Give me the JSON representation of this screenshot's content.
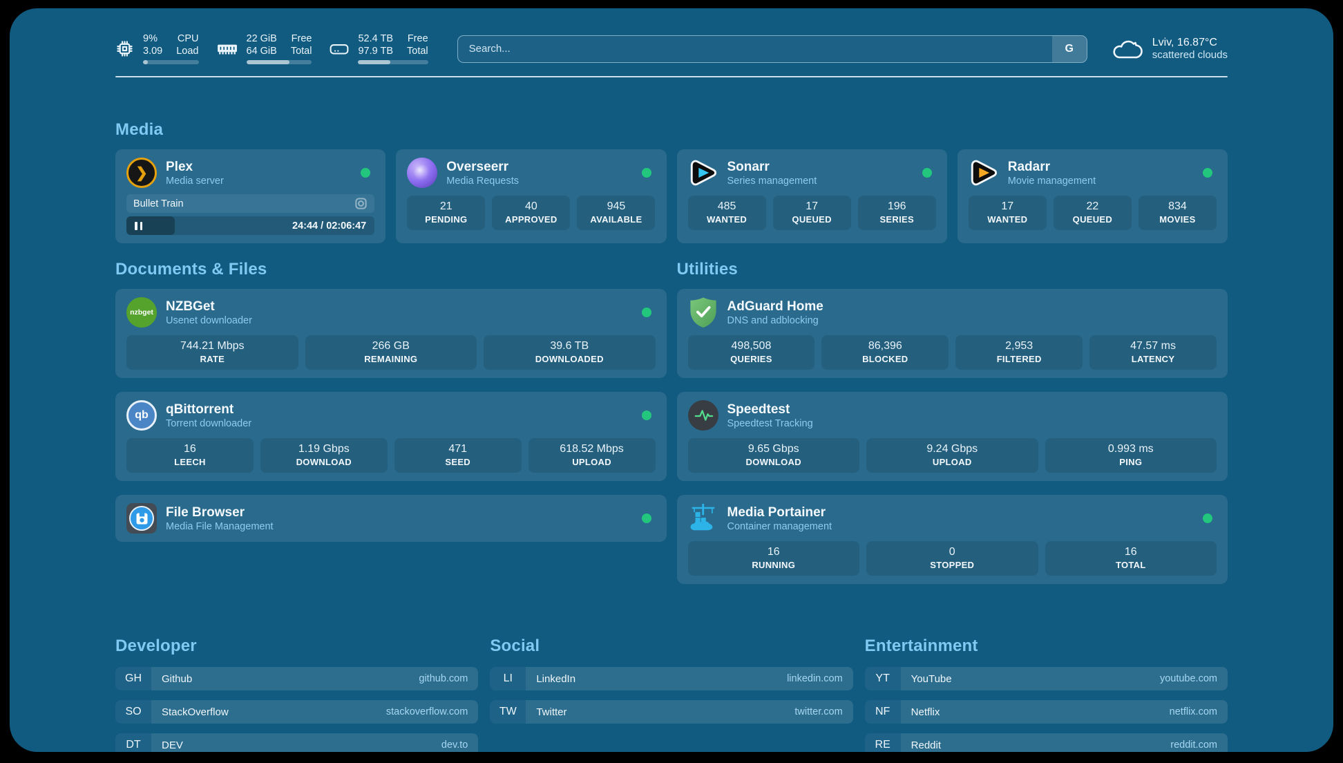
{
  "topbar": {
    "cpu": {
      "value_top": "9%",
      "value_bottom": "3.09",
      "label_top": "CPU",
      "label_bottom": "Load",
      "bar_pct": 9
    },
    "memory": {
      "value_top": "22 GiB",
      "value_bottom": "64 GiB",
      "label_top": "Free",
      "label_bottom": "Total",
      "bar_pct": 66
    },
    "disk": {
      "value_top": "52.4 TB",
      "value_bottom": "97.9 TB",
      "label_top": "Free",
      "label_bottom": "Total",
      "bar_pct": 46
    },
    "search": {
      "placeholder": "Search...",
      "button_label": "G"
    },
    "weather": {
      "location": "Lviv, 16.87°C",
      "condition": "scattered clouds"
    }
  },
  "sections": {
    "media": "Media",
    "documents": "Documents & Files",
    "utilities": "Utilities"
  },
  "media_cards": {
    "plex": {
      "title": "Plex",
      "subtitle": "Media server",
      "now_playing": "Bullet Train",
      "progress_pct": 19.5,
      "time": "24:44 / 02:06:47"
    },
    "overseerr": {
      "title": "Overseerr",
      "subtitle": "Media Requests",
      "stats": [
        {
          "value": "21",
          "label": "PENDING"
        },
        {
          "value": "40",
          "label": "APPROVED"
        },
        {
          "value": "945",
          "label": "AVAILABLE"
        }
      ]
    },
    "sonarr": {
      "title": "Sonarr",
      "subtitle": "Series management",
      "stats": [
        {
          "value": "485",
          "label": "WANTED"
        },
        {
          "value": "17",
          "label": "QUEUED"
        },
        {
          "value": "196",
          "label": "SERIES"
        }
      ]
    },
    "radarr": {
      "title": "Radarr",
      "subtitle": "Movie management",
      "stats": [
        {
          "value": "17",
          "label": "WANTED"
        },
        {
          "value": "22",
          "label": "QUEUED"
        },
        {
          "value": "834",
          "label": "MOVIES"
        }
      ]
    }
  },
  "documents_cards": {
    "nzbget": {
      "title": "NZBGet",
      "subtitle": "Usenet downloader",
      "stats": [
        {
          "value": "744.21 Mbps",
          "label": "RATE"
        },
        {
          "value": "266 GB",
          "label": "REMAINING"
        },
        {
          "value": "39.6 TB",
          "label": "DOWNLOADED"
        }
      ]
    },
    "qbittorrent": {
      "title": "qBittorrent",
      "subtitle": "Torrent downloader",
      "stats": [
        {
          "value": "16",
          "label": "LEECH"
        },
        {
          "value": "1.19 Gbps",
          "label": "DOWNLOAD"
        },
        {
          "value": "471",
          "label": "SEED"
        },
        {
          "value": "618.52 Mbps",
          "label": "UPLOAD"
        }
      ]
    },
    "filebrowser": {
      "title": "File Browser",
      "subtitle": "Media File Management"
    }
  },
  "utilities_cards": {
    "adguard": {
      "title": "AdGuard Home",
      "subtitle": "DNS and adblocking",
      "stats": [
        {
          "value": "498,508",
          "label": "QUERIES"
        },
        {
          "value": "86,396",
          "label": "BLOCKED"
        },
        {
          "value": "2,953",
          "label": "FILTERED"
        },
        {
          "value": "47.57 ms",
          "label": "LATENCY"
        }
      ]
    },
    "speedtest": {
      "title": "Speedtest",
      "subtitle": "Speedtest Tracking",
      "stats": [
        {
          "value": "9.65 Gbps",
          "label": "DOWNLOAD"
        },
        {
          "value": "9.24 Gbps",
          "label": "UPLOAD"
        },
        {
          "value": "0.993 ms",
          "label": "PING"
        }
      ]
    },
    "portainer": {
      "title": "Media Portainer",
      "subtitle": "Container management",
      "stats": [
        {
          "value": "16",
          "label": "RUNNING"
        },
        {
          "value": "0",
          "label": "STOPPED"
        },
        {
          "value": "16",
          "label": "TOTAL"
        }
      ]
    }
  },
  "bookmarks": {
    "developer": {
      "title": "Developer",
      "items": [
        {
          "abbr": "GH",
          "name": "Github",
          "url": "github.com"
        },
        {
          "abbr": "SO",
          "name": "StackOverflow",
          "url": "stackoverflow.com"
        },
        {
          "abbr": "DT",
          "name": "DEV",
          "url": "dev.to"
        }
      ]
    },
    "social": {
      "title": "Social",
      "items": [
        {
          "abbr": "LI",
          "name": "LinkedIn",
          "url": "linkedin.com"
        },
        {
          "abbr": "TW",
          "name": "Twitter",
          "url": "twitter.com"
        }
      ]
    },
    "entertainment": {
      "title": "Entertainment",
      "items": [
        {
          "abbr": "YT",
          "name": "YouTube",
          "url": "youtube.com"
        },
        {
          "abbr": "NF",
          "name": "Netflix",
          "url": "netflix.com"
        },
        {
          "abbr": "RE",
          "name": "Reddit",
          "url": "reddit.com"
        }
      ]
    }
  },
  "icons": {
    "plex_glyph": "❯",
    "nzbget_label": "nzbget",
    "qbittorrent_label": "qb"
  },
  "colors": {
    "background": "#115a80",
    "accent_heading": "#7fc9f3",
    "status_ok": "#22c77d",
    "plex_brand": "#e5a00d"
  }
}
